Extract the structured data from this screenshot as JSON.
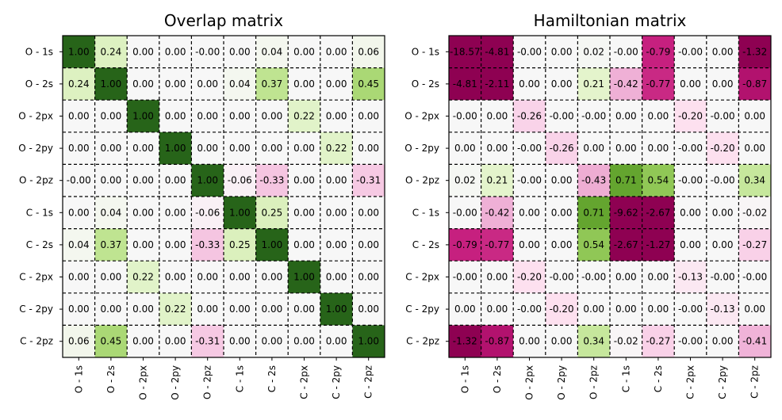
{
  "chart_data": [
    {
      "type": "heatmap",
      "title": "Overlap matrix",
      "colormap": "PiYG",
      "row_labels": [
        "O - 1s",
        "O - 2s",
        "O - 2px",
        "O - 2py",
        "O - 2pz",
        "C - 1s",
        "C - 2s",
        "C - 2px",
        "C - 2py",
        "C - 2pz"
      ],
      "col_labels": [
        "O - 1s",
        "O - 2s",
        "O - 2px",
        "O - 2py",
        "O - 2pz",
        "C - 1s",
        "C - 2s",
        "C - 2px",
        "C - 2py",
        "C - 2pz"
      ],
      "value_labels": [
        [
          "1.00",
          "0.24",
          "0.00",
          "0.00",
          "-0.00",
          "0.00",
          "0.04",
          "0.00",
          "0.00",
          "0.06"
        ],
        [
          "0.24",
          "1.00",
          "0.00",
          "0.00",
          "0.00",
          "0.04",
          "0.37",
          "0.00",
          "0.00",
          "0.45"
        ],
        [
          "0.00",
          "0.00",
          "1.00",
          "0.00",
          "0.00",
          "0.00",
          "0.00",
          "0.22",
          "0.00",
          "0.00"
        ],
        [
          "0.00",
          "0.00",
          "0.00",
          "1.00",
          "0.00",
          "0.00",
          "0.00",
          "0.00",
          "0.22",
          "0.00"
        ],
        [
          "-0.00",
          "0.00",
          "0.00",
          "0.00",
          "1.00",
          "-0.06",
          "-0.33",
          "0.00",
          "0.00",
          "-0.31"
        ],
        [
          "0.00",
          "0.04",
          "0.00",
          "0.00",
          "-0.06",
          "1.00",
          "0.25",
          "0.00",
          "0.00",
          "0.00"
        ],
        [
          "0.04",
          "0.37",
          "0.00",
          "0.00",
          "-0.33",
          "0.25",
          "1.00",
          "0.00",
          "0.00",
          "0.00"
        ],
        [
          "0.00",
          "0.00",
          "0.22",
          "0.00",
          "0.00",
          "0.00",
          "0.00",
          "1.00",
          "0.00",
          "0.00"
        ],
        [
          "0.00",
          "0.00",
          "0.00",
          "0.22",
          "0.00",
          "0.00",
          "0.00",
          "0.00",
          "1.00",
          "0.00"
        ],
        [
          "0.06",
          "0.45",
          "0.00",
          "0.00",
          "-0.31",
          "0.00",
          "0.00",
          "0.00",
          "0.00",
          "1.00"
        ]
      ],
      "color_range": [
        -1,
        1
      ]
    },
    {
      "type": "heatmap",
      "title": "Hamiltonian matrix",
      "colormap": "PiYG",
      "row_labels": [
        "O - 1s",
        "O - 2s",
        "O - 2px",
        "O - 2py",
        "O - 2pz",
        "C - 1s",
        "C - 2s",
        "C - 2px",
        "C - 2py",
        "C - 2pz"
      ],
      "col_labels": [
        "O - 1s",
        "O - 2s",
        "O - 2px",
        "O - 2py",
        "O - 2pz",
        "C - 1s",
        "C - 2s",
        "C - 2px",
        "C - 2py",
        "C - 2pz"
      ],
      "value_labels": [
        [
          "-18.57",
          "-4.81",
          "-0.00",
          "0.00",
          "0.02",
          "-0.00",
          "-0.79",
          "-0.00",
          "0.00",
          "-1.32"
        ],
        [
          "-4.81",
          "-2.11",
          "0.00",
          "0.00",
          "0.21",
          "-0.42",
          "-0.77",
          "0.00",
          "0.00",
          "-0.87"
        ],
        [
          "-0.00",
          "0.00",
          "-0.26",
          "-0.00",
          "-0.00",
          "0.00",
          "0.00",
          "-0.20",
          "-0.00",
          "0.00"
        ],
        [
          "0.00",
          "0.00",
          "-0.00",
          "-0.26",
          "0.00",
          "0.00",
          "0.00",
          "-0.00",
          "-0.20",
          "0.00"
        ],
        [
          "0.02",
          "0.21",
          "-0.00",
          "0.00",
          "-0.43",
          "0.71",
          "0.54",
          "-0.00",
          "-0.00",
          "0.34"
        ],
        [
          "-0.00",
          "-0.42",
          "0.00",
          "0.00",
          "0.71",
          "-9.62",
          "-2.67",
          "0.00",
          "0.00",
          "-0.02"
        ],
        [
          "-0.79",
          "-0.77",
          "0.00",
          "0.00",
          "0.54",
          "-2.67",
          "-1.27",
          "0.00",
          "0.00",
          "-0.27"
        ],
        [
          "-0.00",
          "0.00",
          "-0.20",
          "-0.00",
          "-0.00",
          "0.00",
          "0.00",
          "-0.13",
          "-0.00",
          "-0.00"
        ],
        [
          "0.00",
          "0.00",
          "-0.00",
          "-0.20",
          "0.00",
          "0.00",
          "0.00",
          "-0.00",
          "-0.13",
          "0.00"
        ],
        [
          "-1.32",
          "-0.87",
          "0.00",
          "0.00",
          "0.34",
          "-0.02",
          "-0.27",
          "-0.00",
          "0.00",
          "-0.41"
        ]
      ],
      "color_range": [
        -1,
        1
      ]
    }
  ]
}
